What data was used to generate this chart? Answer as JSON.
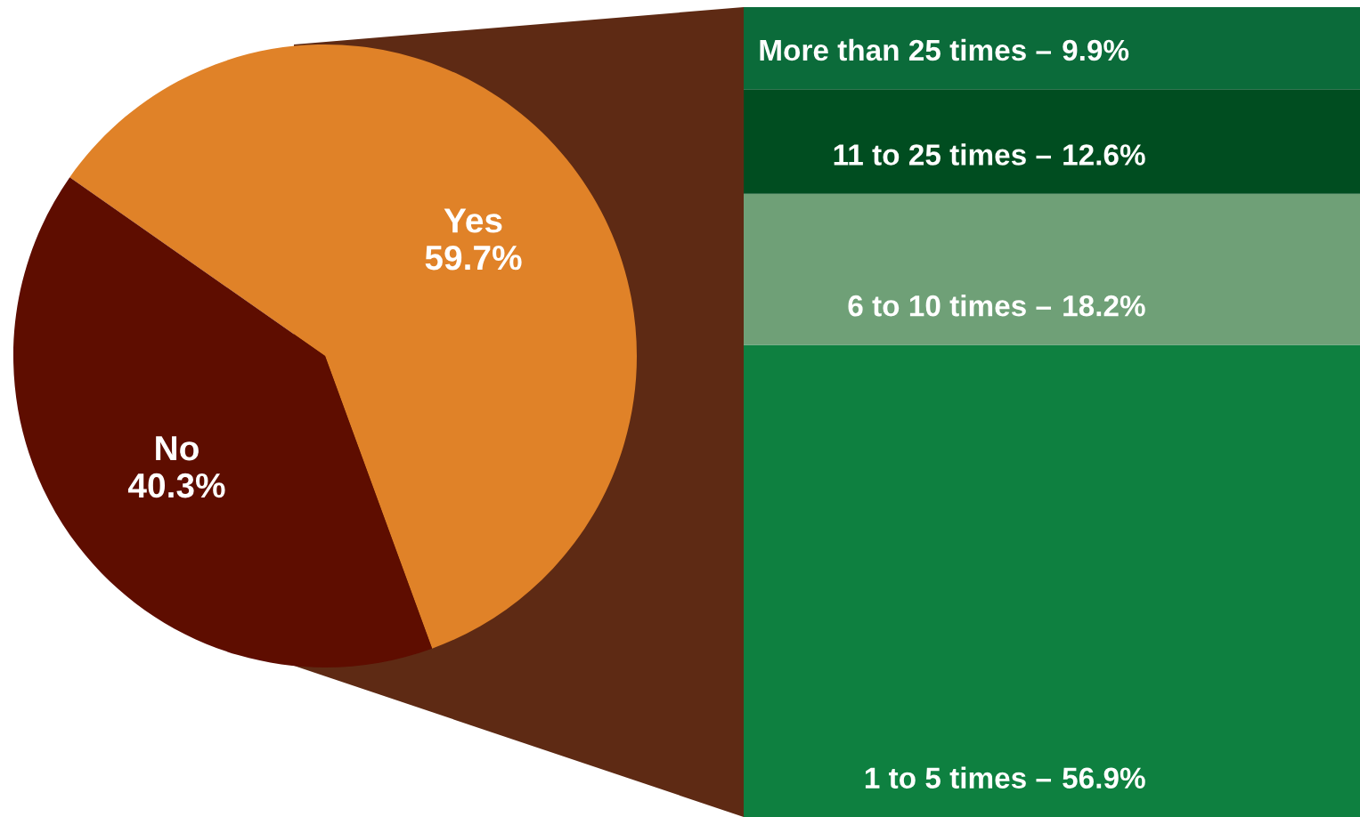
{
  "chart_data": [
    {
      "type": "pie",
      "categories": [
        "Yes",
        "No"
      ],
      "values": [
        59.7,
        40.3
      ],
      "colors": [
        "#e08228",
        "#5e0d00"
      ],
      "value_labels": [
        "59.7%",
        "40.3%"
      ]
    },
    {
      "type": "bar",
      "stacked": true,
      "categories": [
        null
      ],
      "series": [
        {
          "name": "1 to 5 times –",
          "color": "#0e8040",
          "values": [
            56.9
          ],
          "value_labels": [
            "56.9%"
          ]
        },
        {
          "name": "6 to 10 times –",
          "color": "#6fa077",
          "values": [
            18.2
          ],
          "value_labels": [
            "18.2%"
          ]
        },
        {
          "name": "11 to 25 times –",
          "color": "#004d20",
          "values": [
            12.6
          ],
          "value_labels": [
            "12.6%"
          ]
        },
        {
          "name": "More than 25 times –",
          "color": "#0b6b3a",
          "values": [
            9.9
          ],
          "value_labels": [
            "9.9%"
          ]
        }
      ]
    }
  ]
}
